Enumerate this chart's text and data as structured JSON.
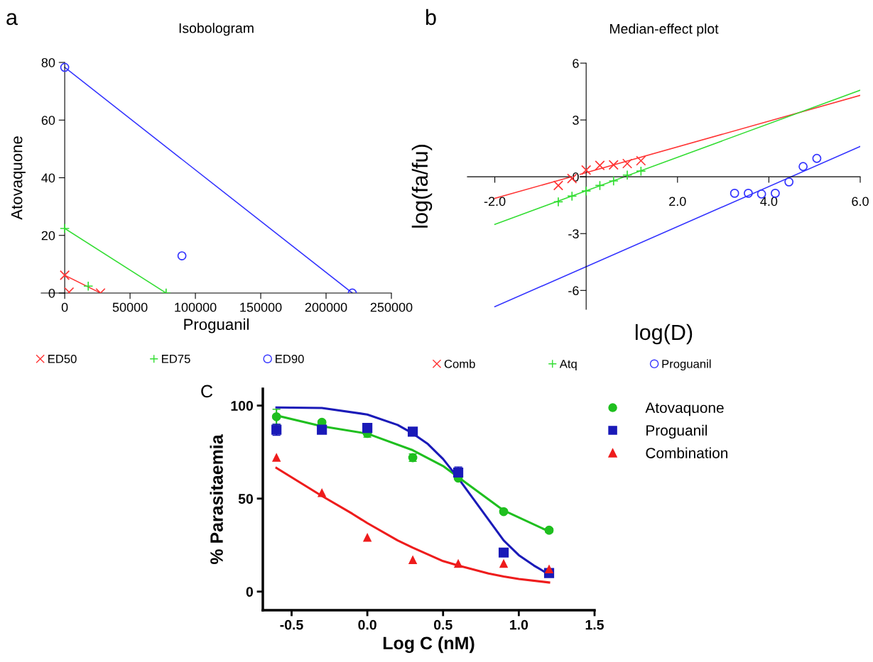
{
  "chart_data": [
    {
      "type": "scatter",
      "title": "Isobologram",
      "xlabel": "Proguanil",
      "ylabel": "Atovaquone",
      "annotations": [
        "a"
      ],
      "xlim": [
        -18000,
        250000
      ],
      "ylim": [
        0,
        80
      ],
      "xticks": [
        0,
        50000,
        100000,
        150000,
        200000,
        250000
      ],
      "yticks": [
        0,
        20,
        40,
        60,
        80
      ],
      "grid": false,
      "legend": "bottom",
      "series": [
        {
          "name": "ED50",
          "color": "#ff3333",
          "marker": "x",
          "x": [
            0,
            3350,
            27400
          ],
          "values": [
            6.2,
            0.3,
            0
          ]
        },
        {
          "name": "ED75",
          "color": "#33dd33",
          "marker": "cross",
          "x": [
            0,
            18000,
            77600
          ],
          "values": [
            22.4,
            2.4,
            0
          ]
        },
        {
          "name": "ED90",
          "color": "#3333ff",
          "marker": "circle",
          "x": [
            0,
            89700,
            220100
          ],
          "values": [
            78.3,
            12.9,
            0
          ]
        },
        {
          "type": "line",
          "color": "#ff3333",
          "marker": "none",
          "x": [
            0,
            27400
          ],
          "values": [
            6.2,
            0
          ]
        },
        {
          "type": "line",
          "color": "#33dd33",
          "marker": "none",
          "x": [
            0,
            77600
          ],
          "values": [
            22.4,
            0
          ]
        },
        {
          "type": "line",
          "color": "#3333ff",
          "marker": "none",
          "x": [
            0,
            220100
          ],
          "values": [
            78.3,
            0
          ]
        }
      ]
    },
    {
      "type": "scatter",
      "title": "Median-effect plot",
      "xlabel": "log(D)",
      "ylabel": "log(fa/fu)",
      "annotations": [
        "b"
      ],
      "xlim": [
        -2.6,
        6.0
      ],
      "ylim": [
        -7,
        6
      ],
      "xticks": [
        {
          "value": -2,
          "label": "-2.0"
        },
        {
          "value": 2,
          "label": "2.0"
        },
        {
          "value": 4,
          "label": "4.0"
        },
        {
          "value": 6,
          "label": "6.0"
        }
      ],
      "yticks": [
        -6,
        -3,
        0,
        3,
        6
      ],
      "grid": false,
      "legend": "bottom",
      "series": [
        {
          "name": "Comb",
          "color": "#ff3333",
          "marker": "x",
          "x": [
            -0.61,
            -0.31,
            0,
            0.3,
            0.6,
            0.9,
            1.2
          ],
          "values": [
            -0.46,
            -0.09,
            0.36,
            0.6,
            0.63,
            0.7,
            0.85
          ]
        },
        {
          "name": "Atq",
          "color": "#33dd33",
          "marker": "cross",
          "x": [
            -0.61,
            -0.31,
            0,
            0.3,
            0.6,
            0.9,
            1.2
          ],
          "values": [
            -1.32,
            -1.02,
            -0.75,
            -0.46,
            -0.22,
            0.09,
            0.3
          ]
        },
        {
          "name": "Proguanil",
          "color": "#3333ff",
          "marker": "circle",
          "x": [
            3.25,
            3.55,
            3.84,
            4.14,
            4.44,
            4.75,
            5.05
          ],
          "values": [
            -0.87,
            -0.87,
            -0.91,
            -0.87,
            -0.27,
            0.54,
            0.97
          ]
        },
        {
          "type": "line",
          "color": "#ff3333",
          "marker": "none",
          "x": [
            -2,
            6
          ],
          "values": [
            -1.14,
            4.3
          ]
        },
        {
          "type": "line",
          "color": "#33dd33",
          "marker": "none",
          "x": [
            -2,
            6
          ],
          "values": [
            -2.51,
            4.57
          ]
        },
        {
          "type": "line",
          "color": "#3333ff",
          "marker": "none",
          "x": [
            -2,
            6
          ],
          "values": [
            -6.86,
            1.6
          ]
        }
      ]
    },
    {
      "type": "scatter",
      "xlabel": "Log C (nM)",
      "ylabel": "% Parasitaemia",
      "annotations": [
        "C"
      ],
      "xlim": [
        -0.69,
        1.5
      ],
      "ylim": [
        -10,
        109
      ],
      "xticks": [
        {
          "value": -0.5,
          "label": "-0.5"
        },
        {
          "value": 0,
          "label": "0.0"
        },
        {
          "value": 0.5,
          "label": "0.5"
        },
        {
          "value": 1.0,
          "label": "1.0"
        },
        {
          "value": 1.5,
          "label": "1.5"
        }
      ],
      "yticks": [
        0,
        50,
        100
      ],
      "grid": false,
      "legend": "right",
      "series": [
        {
          "name": "Atovaquone",
          "color": "#1fbf1f",
          "marker": "circle",
          "x": [
            -0.6,
            -0.3,
            0,
            0.3,
            0.6,
            0.9,
            1.2
          ],
          "values": [
            94,
            91,
            85,
            72,
            61,
            43,
            33
          ],
          "errors": [
            4,
            1,
            2,
            2,
            null,
            1,
            1
          ]
        },
        {
          "name": "Proguanil",
          "color": "#1a1ab8",
          "marker": "square",
          "x": [
            -0.6,
            -0.3,
            0,
            0.3,
            0.6,
            0.9,
            1.2
          ],
          "values": [
            87,
            87,
            88,
            86,
            64,
            21,
            10
          ],
          "errors": [
            3,
            1,
            1,
            1,
            3,
            1,
            1
          ]
        },
        {
          "name": "Combination",
          "color": "#ee1c1c",
          "marker": "triangle",
          "x": [
            -0.6,
            -0.3,
            0,
            0.3,
            0.6,
            0.9,
            1.2
          ],
          "values": [
            72,
            53,
            29,
            17,
            15,
            15,
            12
          ]
        },
        {
          "type": "line",
          "color": "#1fbf1f",
          "marker": "none",
          "x": [
            -0.6,
            -0.3,
            0,
            0.3,
            0.5,
            0.6,
            0.9,
            1.2
          ],
          "values": [
            94.7,
            88.9,
            84.9,
            76,
            67.5,
            61.5,
            43.6,
            32.3
          ]
        },
        {
          "type": "line",
          "color": "#1a1ab8",
          "marker": "none",
          "x": [
            -0.6,
            -0.3,
            0,
            0.2,
            0.3,
            0.4,
            0.5,
            0.6,
            0.7,
            0.8,
            0.9,
            1.0,
            1.1,
            1.2
          ],
          "values": [
            99,
            98.7,
            95.2,
            89.6,
            85,
            79.3,
            71.3,
            61,
            49.8,
            38.7,
            27.5,
            19.6,
            14,
            9.2
          ]
        },
        {
          "type": "line",
          "color": "#ee1c1c",
          "marker": "none",
          "x": [
            -0.6,
            -0.3,
            -0.1,
            0,
            0.2,
            0.3,
            0.5,
            0.6,
            0.8,
            0.9,
            1.0,
            1.2
          ],
          "values": [
            66.5,
            51.4,
            41.9,
            36.8,
            27.5,
            23.6,
            16.4,
            14,
            9.7,
            8.1,
            6.8,
            4.9
          ]
        }
      ]
    }
  ]
}
